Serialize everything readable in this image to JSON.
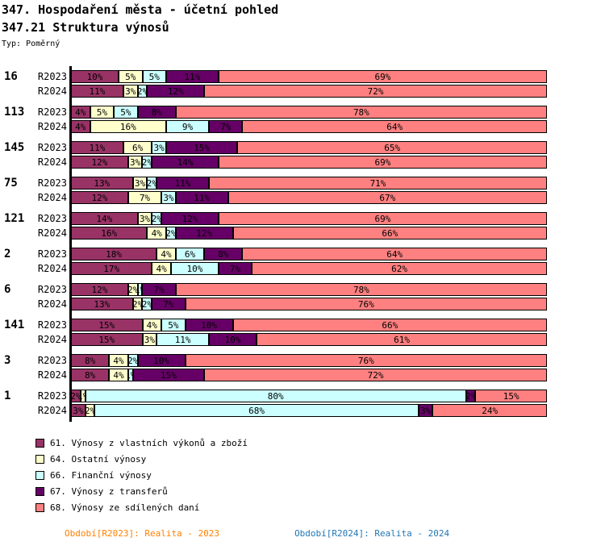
{
  "header": {
    "title": "347. Hospodaření města - účetní pohled",
    "subtitle": "347.21 Struktura výnosů",
    "type": "Typ: Poměrný"
  },
  "chart_data": {
    "type": "bar",
    "orientation": "horizontal-stacked",
    "unit": "percent",
    "value_suffix": "%",
    "xlim": [
      0,
      100
    ],
    "series_names": [
      "61. Výnosy z vlastních výkonů a zboží",
      "64. Ostatní výnosy",
      "66. Finanční výnosy",
      "67. Výnosy z transferů",
      "68. Výnosy ze sdílených daní"
    ],
    "series_colors": [
      "#993366",
      "#FFFFCC",
      "#CCFFFF",
      "#660066",
      "#FF8080"
    ],
    "groups": [
      {
        "label": "16",
        "rows": [
          {
            "period": "R2023",
            "values": [
              10,
              5,
              5,
              11,
              69
            ]
          },
          {
            "period": "R2024",
            "values": [
              11,
              3,
              2,
              12,
              72
            ]
          }
        ]
      },
      {
        "label": "113",
        "rows": [
          {
            "period": "R2023",
            "values": [
              4,
              5,
              5,
              8,
              78
            ]
          },
          {
            "period": "R2024",
            "values": [
              4,
              16,
              9,
              7,
              64
            ]
          }
        ]
      },
      {
        "label": "145",
        "rows": [
          {
            "period": "R2023",
            "values": [
              11,
              6,
              3,
              15,
              65
            ]
          },
          {
            "period": "R2024",
            "values": [
              12,
              3,
              2,
              14,
              69
            ]
          }
        ]
      },
      {
        "label": "75",
        "rows": [
          {
            "period": "R2023",
            "values": [
              13,
              3,
              2,
              11,
              71
            ]
          },
          {
            "period": "R2024",
            "values": [
              12,
              7,
              3,
              11,
              67
            ]
          }
        ]
      },
      {
        "label": "121",
        "rows": [
          {
            "period": "R2023",
            "values": [
              14,
              3,
              2,
              12,
              69
            ]
          },
          {
            "period": "R2024",
            "values": [
              16,
              4,
              2,
              12,
              66
            ]
          }
        ]
      },
      {
        "label": "2",
        "rows": [
          {
            "period": "R2023",
            "values": [
              18,
              4,
              6,
              8,
              64
            ]
          },
          {
            "period": "R2024",
            "values": [
              17,
              4,
              10,
              7,
              62
            ]
          }
        ]
      },
      {
        "label": "6",
        "rows": [
          {
            "period": "R2023",
            "values": [
              12,
              2,
              1,
              7,
              78
            ]
          },
          {
            "period": "R2024",
            "values": [
              13,
              2,
              2,
              7,
              76
            ]
          }
        ]
      },
      {
        "label": "141",
        "rows": [
          {
            "period": "R2023",
            "values": [
              15,
              4,
              5,
              10,
              66
            ]
          },
          {
            "period": "R2024",
            "values": [
              15,
              3,
              11,
              10,
              61
            ]
          }
        ]
      },
      {
        "label": "3",
        "rows": [
          {
            "period": "R2023",
            "values": [
              8,
              4,
              2,
              10,
              76
            ]
          },
          {
            "period": "R2024",
            "values": [
              8,
              4,
              1,
              15,
              72
            ]
          }
        ]
      },
      {
        "label": "1",
        "rows": [
          {
            "period": "R2023",
            "values": [
              2,
              1,
              80,
              2,
              15
            ]
          },
          {
            "period": "R2024",
            "values": [
              3,
              2,
              68,
              3,
              24
            ]
          }
        ]
      }
    ]
  },
  "legend": {
    "items": [
      {
        "label": "61. Výnosy z vlastních výkonů a zboží",
        "color": "#993366"
      },
      {
        "label": "64. Ostatní výnosy",
        "color": "#FFFFCC"
      },
      {
        "label": "66. Finanční výnosy",
        "color": "#CCFFFF"
      },
      {
        "label": "67. Výnosy z transferů",
        "color": "#660066"
      },
      {
        "label": "68. Výnosy ze sdílených daní",
        "color": "#FF8080"
      }
    ]
  },
  "footer": {
    "left": {
      "text": "Období[R2023]: Realita - 2023",
      "color": "#FF8000"
    },
    "right": {
      "text": "Období[R2024]: Realita - 2024",
      "color": "#1F77B4"
    }
  }
}
